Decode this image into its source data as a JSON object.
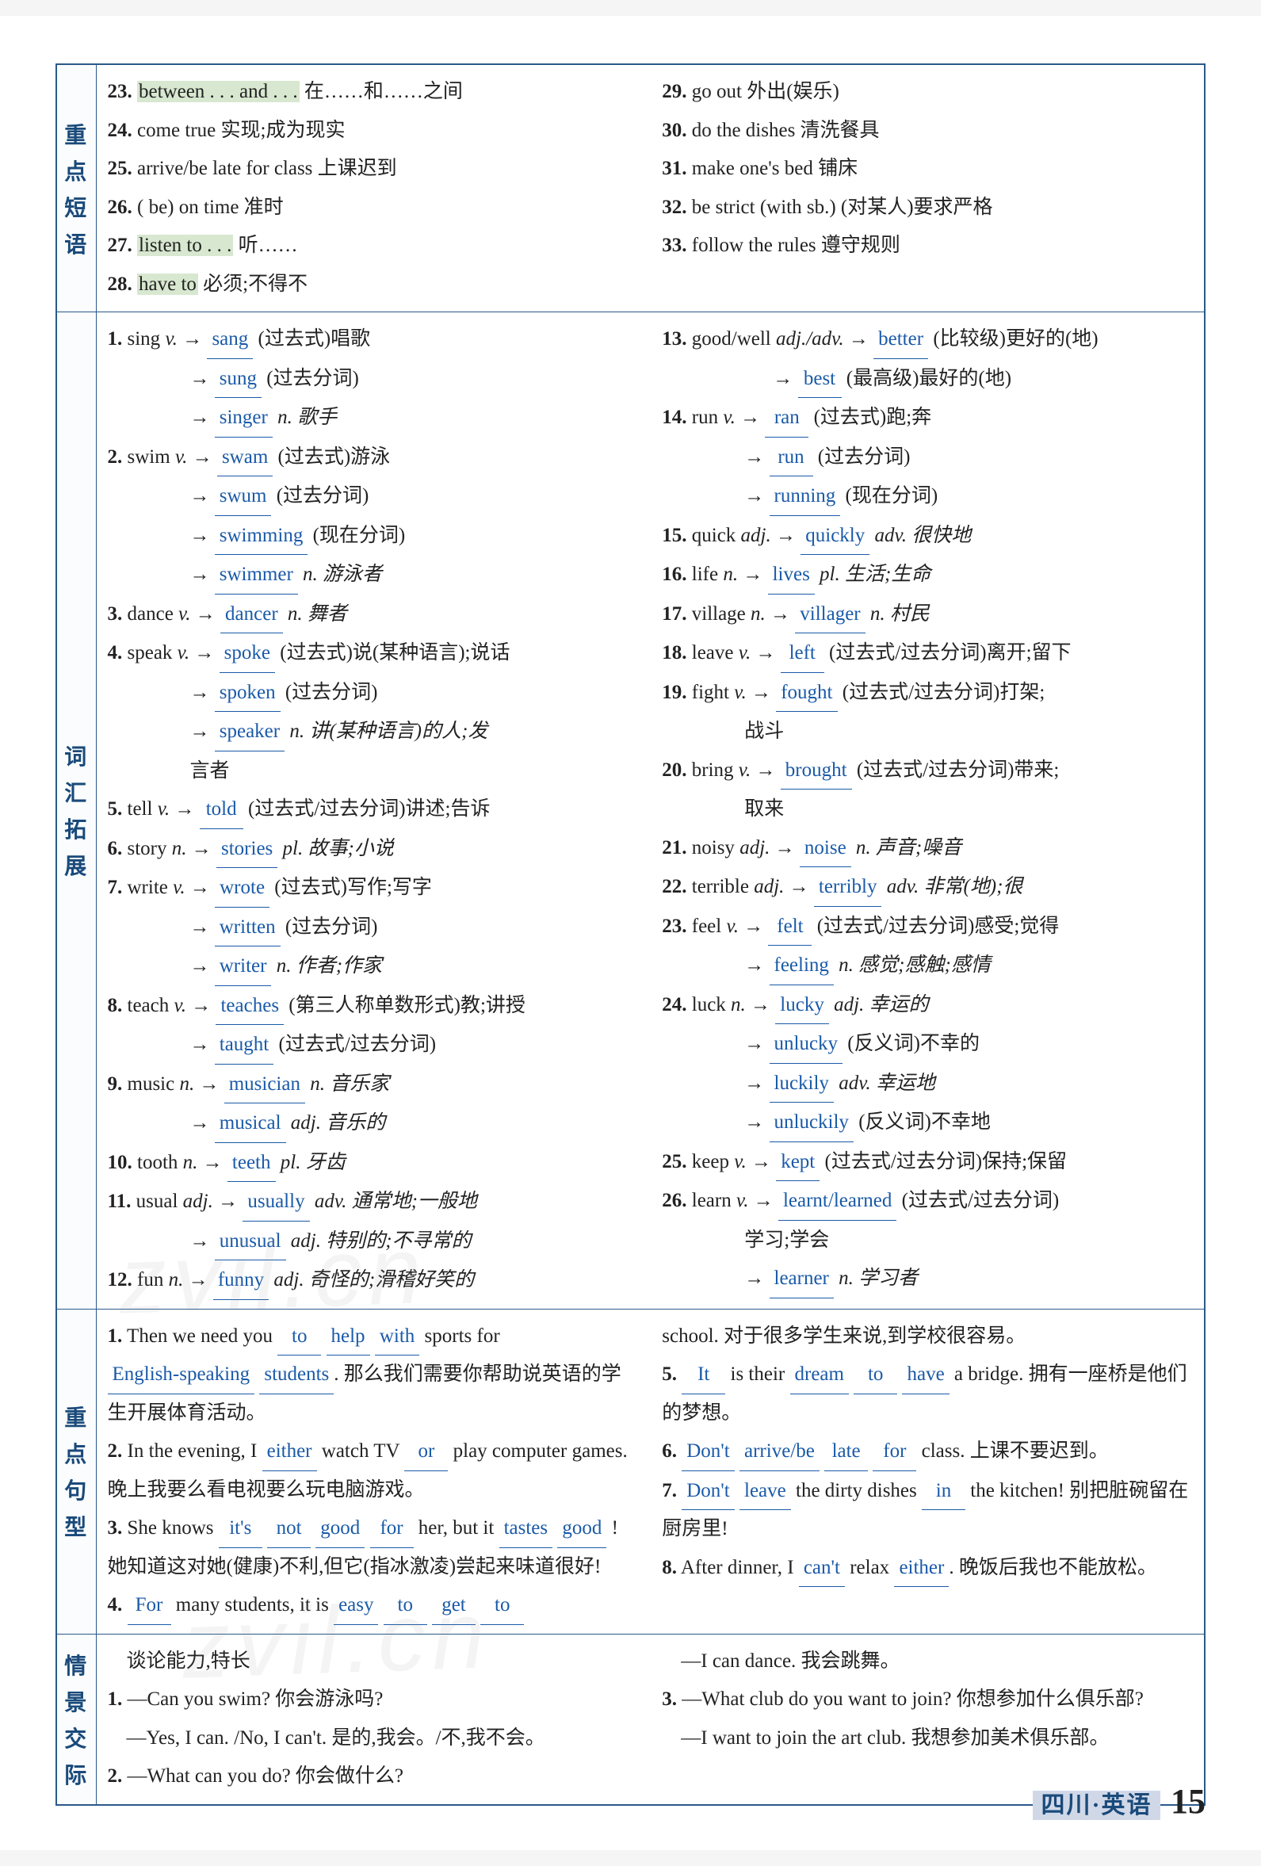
{
  "sections": {
    "phrases": {
      "label": "重点短语",
      "left": [
        {
          "n": "23",
          "pre": "",
          "hl": "between . . . and . . .",
          "post": " 在……和……之间"
        },
        {
          "n": "24",
          "t": "come true 实现;成为现实"
        },
        {
          "n": "25",
          "t": "arrive/be late for class 上课迟到"
        },
        {
          "n": "26",
          "t": "( be) on time 准时"
        },
        {
          "n": "27",
          "pre": "",
          "hl": "listen to . . .",
          "post": " 听……"
        },
        {
          "n": "28",
          "pre": "",
          "hl": "have to",
          "post": " 必须;不得不"
        }
      ],
      "right": [
        {
          "n": "29",
          "t": "go out 外出(娱乐)"
        },
        {
          "n": "30",
          "t": "do the dishes 清洗餐具"
        },
        {
          "n": "31",
          "t": "make one's bed 铺床"
        },
        {
          "n": "32",
          "t": "be strict (with sb.) (对某人)要求严格"
        },
        {
          "n": "33",
          "t": "follow the rules 遵守规则"
        }
      ]
    },
    "vocab": {
      "label": "词汇拓展",
      "left": [
        {
          "type": "head",
          "n": "1",
          "word": "sing",
          "pos": "v.",
          "ans": "sang",
          "desc": "(过去式)唱歌"
        },
        {
          "type": "sub",
          "ans": "sung",
          "desc": "(过去分词)"
        },
        {
          "type": "sub",
          "ans": "singer",
          "desc": "n. 歌手",
          "it": true
        },
        {
          "type": "head",
          "n": "2",
          "word": "swim",
          "pos": "v.",
          "ans": "swam",
          "desc": "(过去式)游泳"
        },
        {
          "type": "sub",
          "ans": "swum",
          "desc": "(过去分词)"
        },
        {
          "type": "sub",
          "ans": "swimming",
          "desc": "(现在分词)"
        },
        {
          "type": "sub",
          "ans": "swimmer",
          "desc": "n. 游泳者",
          "it": true
        },
        {
          "type": "head",
          "n": "3",
          "word": "dance",
          "pos": "v.",
          "ans": "dancer",
          "desc": "n. 舞者",
          "it": true
        },
        {
          "type": "head",
          "n": "4",
          "word": "speak",
          "pos": "v.",
          "ans": "spoke",
          "desc": "(过去式)说(某种语言);说话"
        },
        {
          "type": "sub",
          "ans": "spoken",
          "desc": "(过去分词)"
        },
        {
          "type": "sub",
          "ans": "speaker",
          "desc": "n. 讲(某种语言)的人;发",
          "it": true
        },
        {
          "type": "cont",
          "text": "言者"
        },
        {
          "type": "head",
          "n": "5",
          "word": "tell",
          "pos": "v.",
          "ans": "told",
          "desc": "(过去式/过去分词)讲述;告诉"
        },
        {
          "type": "head",
          "n": "6",
          "word": "story",
          "pos": "n.",
          "ans": "stories",
          "desc": "pl. 故事;小说",
          "it": true
        },
        {
          "type": "head",
          "n": "7",
          "word": "write",
          "pos": "v.",
          "ans": "wrote",
          "desc": "(过去式)写作;写字"
        },
        {
          "type": "sub",
          "ans": "written",
          "desc": "(过去分词)"
        },
        {
          "type": "sub",
          "ans": "writer",
          "desc": "n. 作者;作家",
          "it": true
        },
        {
          "type": "head",
          "n": "8",
          "word": "teach",
          "pos": "v.",
          "ans": "teaches",
          "desc": "(第三人称单数形式)教;讲授"
        },
        {
          "type": "sub",
          "ans": "taught",
          "desc": "(过去式/过去分词)"
        },
        {
          "type": "head",
          "n": "9",
          "word": "music",
          "pos": "n.",
          "ans": "musician",
          "desc": "n. 音乐家",
          "it": true
        },
        {
          "type": "sub",
          "ans": "musical",
          "desc": "adj. 音乐的",
          "it": true
        },
        {
          "type": "head",
          "n": "10",
          "word": "tooth",
          "pos": "n.",
          "ans": "teeth",
          "desc": "pl. 牙齿",
          "it": true
        },
        {
          "type": "head",
          "n": "11",
          "word": "usual",
          "pos": "adj.",
          "ans": "usually",
          "desc": "adv. 通常地;一般地",
          "it": true
        },
        {
          "type": "sub",
          "ans": "unusual",
          "desc": "adj. 特别的;不寻常的",
          "it": true
        },
        {
          "type": "head",
          "n": "12",
          "word": "fun",
          "pos": "n.",
          "ans": "funny",
          "desc": "adj. 奇怪的;滑稽好笑的",
          "it": true
        }
      ],
      "right": [
        {
          "type": "head",
          "n": "13",
          "word": "good/well",
          "pos": "adj./adv.",
          "ans": "better",
          "desc": "(比较级)更好的(地)"
        },
        {
          "type": "sub2",
          "ans": "best",
          "desc": "(最高级)最好的(地)"
        },
        {
          "type": "head",
          "n": "14",
          "word": "run",
          "pos": "v.",
          "ans": "ran",
          "desc": "(过去式)跑;奔"
        },
        {
          "type": "sub",
          "ans": "run",
          "desc": "(过去分词)"
        },
        {
          "type": "sub",
          "ans": "running",
          "desc": "(现在分词)"
        },
        {
          "type": "head",
          "n": "15",
          "word": "quick",
          "pos": "adj.",
          "ans": "quickly",
          "desc": "adv. 很快地",
          "it": true
        },
        {
          "type": "head",
          "n": "16",
          "word": "life",
          "pos": "n.",
          "ans": "lives",
          "desc": "pl. 生活;生命",
          "it": true
        },
        {
          "type": "head",
          "n": "17",
          "word": "village",
          "pos": "n.",
          "ans": "villager",
          "desc": "n. 村民",
          "it": true
        },
        {
          "type": "head",
          "n": "18",
          "word": "leave",
          "pos": "v.",
          "ans": "left",
          "desc": "(过去式/过去分词)离开;留下"
        },
        {
          "type": "head",
          "n": "19",
          "word": "fight",
          "pos": "v.",
          "ans": "fought",
          "desc": "(过去式/过去分词)打架;"
        },
        {
          "type": "cont",
          "text": "战斗"
        },
        {
          "type": "head",
          "n": "20",
          "word": "bring",
          "pos": "v.",
          "ans": "brought",
          "desc": "(过去式/过去分词)带来;"
        },
        {
          "type": "cont",
          "text": "取来"
        },
        {
          "type": "head",
          "n": "21",
          "word": "noisy",
          "pos": "adj.",
          "ans": "noise",
          "desc": "n. 声音;噪音",
          "it": true
        },
        {
          "type": "head",
          "n": "22",
          "word": "terrible",
          "pos": "adj.",
          "ans": "terribly",
          "desc": "adv. 非常(地);很",
          "it": true
        },
        {
          "type": "head",
          "n": "23",
          "word": "feel",
          "pos": "v.",
          "ans": "felt",
          "desc": "(过去式/过去分词)感受;觉得"
        },
        {
          "type": "sub",
          "ans": "feeling",
          "desc": "n. 感觉;感触;感情",
          "it": true
        },
        {
          "type": "head",
          "n": "24",
          "word": "luck",
          "pos": "n.",
          "ans": "lucky",
          "desc": "adj. 幸运的",
          "it": true
        },
        {
          "type": "sub",
          "ans": "unlucky",
          "desc": "(反义词)不幸的"
        },
        {
          "type": "sub",
          "ans": "luckily",
          "desc": "adv. 幸运地",
          "it": true
        },
        {
          "type": "sub",
          "ans": "unluckily",
          "desc": "(反义词)不幸地"
        },
        {
          "type": "head",
          "n": "25",
          "word": "keep",
          "pos": "v.",
          "ans": "kept",
          "desc": "(过去式/过去分词)保持;保留"
        },
        {
          "type": "head",
          "n": "26",
          "word": "learn",
          "pos": "v.",
          "ans": "learnt/learned",
          "desc": "(过去式/过去分词)"
        },
        {
          "type": "cont",
          "text": "学习;学会"
        },
        {
          "type": "sub",
          "ans": "learner",
          "desc": "n. 学习者",
          "it": true
        }
      ]
    },
    "sentences": {
      "label": "重点句型",
      "left": [
        {
          "n": "1",
          "parts": [
            "Then we need you ",
            {
              "a": "to"
            },
            " ",
            {
              "a": "help"
            },
            " ",
            {
              "a": "with"
            },
            " sports for ",
            {
              "a": "English-speaking"
            },
            " ",
            {
              "a": "students"
            },
            ". 那么我们需要你帮助说英语的学生开展体育活动。"
          ]
        },
        {
          "n": "2",
          "parts": [
            "In the evening, I ",
            {
              "a": "either"
            },
            " watch TV ",
            {
              "a": "or"
            },
            " play computer games. 晚上我要么看电视要么玩电脑游戏。"
          ]
        },
        {
          "n": "3",
          "parts": [
            "She knows ",
            {
              "a": "it's"
            },
            " ",
            {
              "a": "not"
            },
            " ",
            {
              "a": "good"
            },
            " ",
            {
              "a": "for"
            },
            " her, but it ",
            {
              "a": "tastes"
            },
            " ",
            {
              "a": "good"
            },
            " ! 她知道这对她(健康)不利,但它(指冰激凌)尝起来味道很好!"
          ]
        },
        {
          "n": "4",
          "parts": [
            {
              "a": "For"
            },
            " many students, it is ",
            {
              "a": "easy"
            },
            " ",
            {
              "a": "to"
            },
            " ",
            {
              "a": "get"
            },
            " ",
            {
              "a": "to"
            }
          ]
        }
      ],
      "right": [
        {
          "n": "",
          "parts": [
            "school. 对于很多学生来说,到学校很容易。"
          ]
        },
        {
          "n": "5",
          "parts": [
            {
              "a": "It"
            },
            " is their ",
            {
              "a": "dream"
            },
            " ",
            {
              "a": "to"
            },
            " ",
            {
              "a": "have"
            },
            " a bridge. 拥有一座桥是他们的梦想。"
          ]
        },
        {
          "n": "6",
          "parts": [
            {
              "a": "Don't"
            },
            " ",
            {
              "a": "arrive/be"
            },
            " ",
            {
              "a": "late"
            },
            " ",
            {
              "a": "for"
            },
            " class. 上课不要迟到。"
          ]
        },
        {
          "n": "7",
          "parts": [
            {
              "a": "Don't"
            },
            " ",
            {
              "a": "leave"
            },
            " the dirty dishes ",
            {
              "a": "in"
            },
            " the kitchen! 别把脏碗留在厨房里!"
          ]
        },
        {
          "n": "8",
          "parts": [
            "After dinner, I ",
            {
              "a": "can't"
            },
            " relax ",
            {
              "a": "either"
            },
            ". 晚饭后我也不能放松。"
          ]
        }
      ]
    },
    "dialog": {
      "label": "情景交际",
      "left": [
        {
          "t": "谈论能力,特长"
        },
        {
          "n": "1",
          "t": "—Can you swim? 你会游泳吗?"
        },
        {
          "t": "—Yes, I can. /No, I can't. 是的,我会。/不,我不会。"
        },
        {
          "n": "2",
          "t": "—What can you do? 你会做什么?"
        }
      ],
      "right": [
        {
          "t": "—I can dance. 我会跳舞。"
        },
        {
          "n": "3",
          "t": "—What club do you want to join? 你想参加什么俱乐部?"
        },
        {
          "t": "—I want to join the art club. 我想参加美术俱乐部。"
        }
      ]
    }
  },
  "footer": {
    "region": "四川·英语",
    "page": "15"
  }
}
